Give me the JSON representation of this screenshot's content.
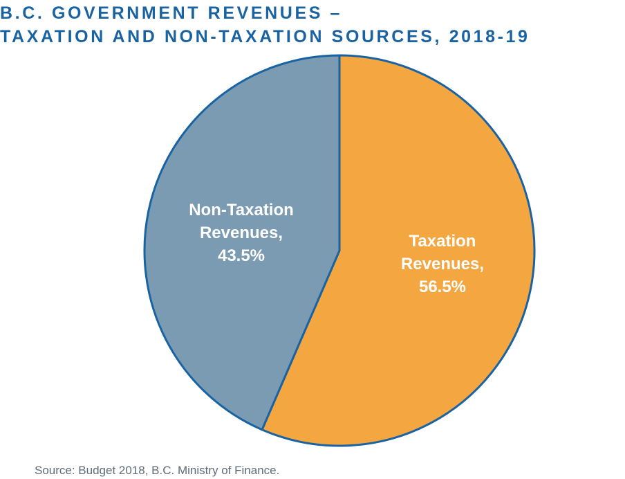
{
  "title": {
    "line1": "B.C. GOVERNMENT REVENUES –",
    "line2": "TAXATION AND NON-TAXATION SOURCES, 2018-19"
  },
  "slices": [
    {
      "name": "Taxation Revenues",
      "line1": "Taxation",
      "line2": "Revenues,",
      "pct": "56.5%",
      "color": "#f4a641"
    },
    {
      "name": "Non-Taxation Revenues",
      "line1": "Non-Taxation",
      "line2": "Revenues,",
      "pct": "43.5%",
      "color": "#7b9bb2"
    }
  ],
  "colors": {
    "outline": "#1a63a3",
    "title": "#1a63a3"
  },
  "source": "Source: Budget 2018, B.C. Ministry of Finance.",
  "chart_data": {
    "type": "pie",
    "title": "B.C. Government Revenues – Taxation and Non-Taxation Sources, 2018-19",
    "categories": [
      "Taxation Revenues",
      "Non-Taxation Revenues"
    ],
    "values": [
      56.5,
      43.5
    ],
    "units": "%",
    "colors": [
      "#f4a641",
      "#7b9bb2"
    ],
    "legend": "none (labels inside slices)",
    "source": "Budget 2018, B.C. Ministry of Finance."
  }
}
